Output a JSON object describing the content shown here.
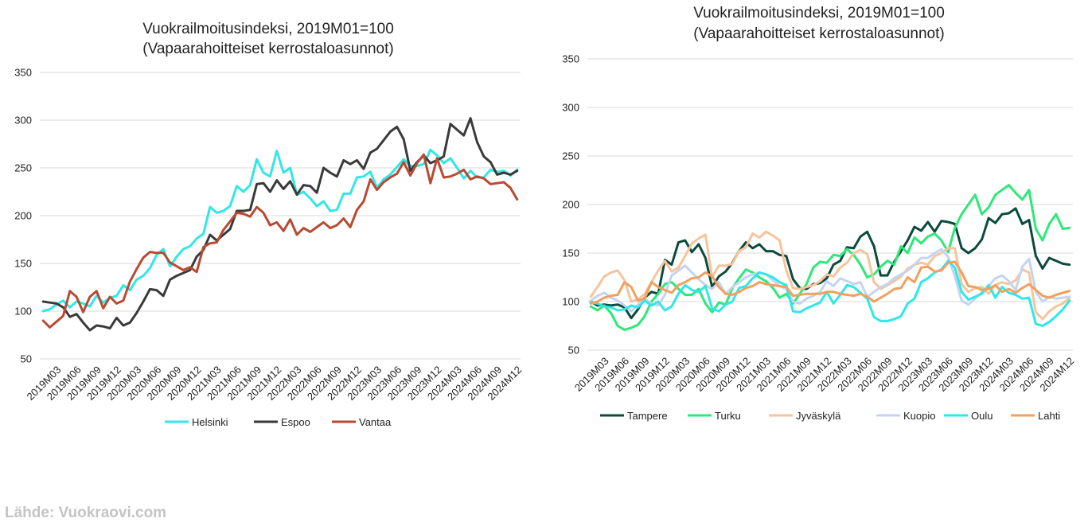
{
  "source": "Lähde: Vuokraovi.com",
  "x_labels": [
    "2019M03",
    "2019M06",
    "2019M09",
    "2019M12",
    "2020M03",
    "2020M06",
    "2020M09",
    "2020M12",
    "2021M03",
    "2021M06",
    "2021M09",
    "2021M12",
    "2022M03",
    "2022M06",
    "2022M09",
    "2022M12",
    "2023M03",
    "2023M06",
    "2023M09",
    "2023M12",
    "2024M03",
    "2024M06",
    "2024M09",
    "2024M12"
  ],
  "chart_data": [
    {
      "type": "line",
      "title": [
        "Vuokrailmoitusindeksi, 2019M01=100",
        "(Vapaarahoitteiset kerrostaloasunnot)"
      ],
      "x_start": "2019M01",
      "x_end": "2024M12",
      "ylim": [
        50,
        350
      ],
      "yticks": [
        50,
        100,
        150,
        200,
        250,
        300,
        350
      ],
      "grid": true,
      "legend": "bottom",
      "series": [
        {
          "name": "Helsinki",
          "color": "#33e6e6",
          "values": [
            100,
            102,
            107,
            111,
            104,
            110,
            108,
            105,
            116,
            109,
            114,
            116,
            127,
            122,
            133,
            137,
            145,
            159,
            165,
            147,
            157,
            165,
            168,
            176,
            181,
            209,
            203,
            205,
            210,
            231,
            225,
            232,
            259,
            245,
            241,
            268,
            245,
            250,
            222,
            225,
            218,
            210,
            215,
            205,
            206,
            223,
            223,
            240,
            241,
            246,
            229,
            238,
            243,
            251,
            259,
            252,
            252,
            254,
            269,
            263,
            255,
            260,
            250,
            239,
            247,
            240,
            240,
            248,
            246,
            247,
            242,
            248
          ]
        },
        {
          "name": "Espoo",
          "color": "#3a3a3a",
          "values": [
            110,
            109,
            108,
            104,
            94,
            97,
            88,
            80,
            85,
            84,
            82,
            93,
            85,
            88,
            98,
            110,
            123,
            122,
            116,
            133,
            137,
            140,
            143,
            157,
            164,
            180,
            174,
            180,
            186,
            205,
            205,
            206,
            233,
            234,
            225,
            237,
            228,
            236,
            222,
            232,
            231,
            224,
            250,
            245,
            241,
            258,
            254,
            258,
            249,
            266,
            270,
            279,
            288,
            293,
            280,
            247,
            256,
            263,
            255,
            258,
            262,
            296,
            290,
            284,
            302,
            277,
            262,
            256,
            243,
            245,
            243,
            247
          ]
        },
        {
          "name": "Vantaa",
          "color": "#b84a32",
          "values": [
            90,
            83,
            89,
            95,
            121,
            115,
            99,
            115,
            121,
            103,
            115,
            108,
            111,
            131,
            144,
            156,
            162,
            161,
            161,
            151,
            147,
            143,
            146,
            141,
            167,
            171,
            172,
            185,
            194,
            203,
            202,
            199,
            209,
            203,
            190,
            193,
            184,
            196,
            180,
            187,
            183,
            188,
            193,
            187,
            190,
            197,
            188,
            206,
            215,
            238,
            227,
            235,
            240,
            244,
            256,
            242,
            255,
            264,
            234,
            260,
            240,
            241,
            244,
            248,
            238,
            241,
            239,
            233,
            234,
            235,
            229,
            217
          ]
        }
      ]
    },
    {
      "type": "line",
      "title": [
        "Vuokrailmoitusindeksi, 2019M01=100",
        "(Vapaarahoitteiset kerrostaloasunnot)"
      ],
      "x_start": "2019M01",
      "x_end": "2024M12",
      "ylim": [
        50,
        350
      ],
      "yticks": [
        50,
        100,
        150,
        200,
        250,
        300,
        350
      ],
      "grid": true,
      "legend": "bottom",
      "series": [
        {
          "name": "Tampere",
          "color": "#0d4a3c",
          "values": [
            100,
            96,
            97,
            96,
            97,
            94,
            83,
            92,
            104,
            110,
            108,
            143,
            138,
            161,
            163,
            151,
            159,
            145,
            115,
            126,
            131,
            140,
            152,
            161,
            155,
            159,
            152,
            152,
            148,
            147,
            123,
            114,
            113,
            118,
            119,
            124,
            138,
            142,
            156,
            155,
            167,
            172,
            157,
            127,
            127,
            141,
            152,
            163,
            177,
            173,
            182,
            172,
            183,
            182,
            180,
            155,
            150,
            155,
            164,
            186,
            181,
            190,
            191,
            196,
            180,
            184,
            147,
            134,
            145,
            142,
            139,
            138
          ]
        },
        {
          "name": "Turku",
          "color": "#2ee878",
          "values": [
            95,
            91,
            96,
            88,
            75,
            71,
            73,
            76,
            85,
            100,
            108,
            118,
            120,
            113,
            107,
            107,
            113,
            98,
            89,
            99,
            97,
            114,
            124,
            133,
            130,
            125,
            121,
            114,
            104,
            108,
            98,
            108,
            118,
            135,
            141,
            140,
            148,
            147,
            154,
            148,
            138,
            125,
            128,
            136,
            142,
            138,
            157,
            150,
            166,
            160,
            167,
            170,
            163,
            151,
            176,
            190,
            200,
            210,
            190,
            197,
            210,
            215,
            220,
            212,
            205,
            215,
            175,
            163,
            180,
            190,
            175,
            176
          ]
        },
        {
          "name": "Jyväskylä",
          "color": "#f5c49c",
          "values": [
            105,
            115,
            126,
            130,
            132,
            122,
            100,
            102,
            108,
            120,
            132,
            142,
            131,
            135,
            147,
            160,
            165,
            169,
            125,
            137,
            137,
            139,
            152,
            156,
            170,
            166,
            172,
            168,
            163,
            132,
            114,
            113,
            115,
            117,
            121,
            128,
            126,
            135,
            140,
            150,
            153,
            149,
            120,
            113,
            117,
            121,
            126,
            134,
            138,
            140,
            138,
            147,
            150,
            155,
            155,
            118,
            110,
            114,
            115,
            108,
            117,
            120,
            118,
            122,
            133,
            130,
            89,
            82,
            90,
            95,
            98,
            104
          ]
        },
        {
          "name": "Kuopio",
          "color": "#c4d4f0",
          "values": [
            101,
            106,
            109,
            104,
            101,
            96,
            90,
            97,
            103,
            98,
            96,
            107,
            127,
            132,
            137,
            130,
            123,
            117,
            113,
            120,
            108,
            115,
            120,
            125,
            128,
            130,
            128,
            122,
            116,
            113,
            100,
            98,
            103,
            106,
            110,
            121,
            116,
            124,
            121,
            118,
            120,
            105,
            110,
            115,
            118,
            124,
            128,
            132,
            138,
            145,
            145,
            150,
            154,
            146,
            126,
            101,
            97,
            103,
            110,
            116,
            124,
            127,
            121,
            112,
            136,
            144,
            110,
            100,
            105,
            103,
            104,
            105
          ]
        },
        {
          "name": "Oulu",
          "color": "#2ee8e8",
          "values": [
            99,
            98,
            95,
            94,
            91,
            92,
            96,
            94,
            101,
            96,
            100,
            91,
            95,
            108,
            117,
            112,
            110,
            116,
            93,
            90,
            97,
            100,
            114,
            116,
            124,
            130,
            128,
            125,
            120,
            117,
            90,
            89,
            93,
            96,
            99,
            110,
            98,
            107,
            117,
            115,
            109,
            103,
            84,
            80,
            80,
            82,
            85,
            98,
            103,
            120,
            124,
            130,
            133,
            142,
            135,
            110,
            102,
            105,
            108,
            117,
            104,
            115,
            109,
            107,
            103,
            104,
            77,
            75,
            79,
            85,
            92,
            101
          ]
        },
        {
          "name": "Lahti",
          "color": "#f0a060",
          "values": [
            98,
            100,
            104,
            106,
            107,
            120,
            115,
            101,
            103,
            120,
            115,
            112,
            109,
            117,
            120,
            124,
            125,
            130,
            126,
            115,
            108,
            107,
            110,
            114,
            116,
            120,
            118,
            117,
            116,
            115,
            106,
            107,
            108,
            108,
            108,
            110,
            110,
            108,
            107,
            106,
            108,
            105,
            100,
            104,
            108,
            113,
            114,
            125,
            120,
            135,
            136,
            131,
            132,
            140,
            141,
            130,
            116,
            115,
            112,
            113,
            117,
            110,
            113,
            109,
            114,
            118,
            112,
            106,
            104,
            107,
            109,
            111
          ]
        }
      ]
    }
  ]
}
